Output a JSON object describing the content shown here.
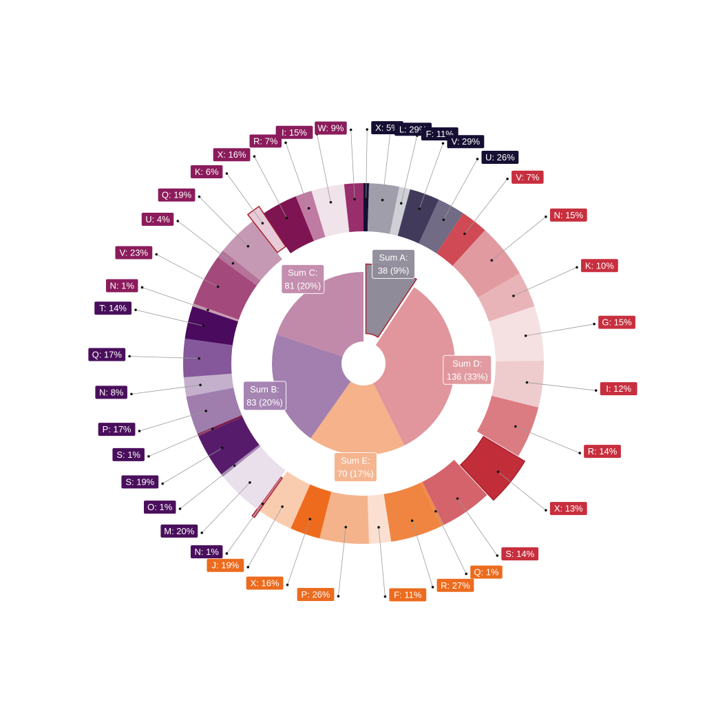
{
  "chart_data": {
    "type": "sunburst",
    "title": "",
    "groups": [
      {
        "name": "A",
        "sum_label": "Sum A:",
        "sum_value": "38 (9%)",
        "total": 38,
        "inner_color": "#8f8b99",
        "label_color": "#160f33",
        "children": [
          {
            "label": "X: 5%",
            "value": 2,
            "color": "#160f33",
            "exploded": false
          },
          {
            "label": "L: 29%",
            "value": 11,
            "color": "#a19eab",
            "exploded": false
          },
          {
            "label": "F: 11%",
            "value": 4,
            "color": "#cfcfd6",
            "exploded": false
          },
          {
            "label": "V: 29%",
            "value": 11,
            "color": "#413a5a",
            "exploded": false
          },
          {
            "label": "U: 26%",
            "value": 10,
            "color": "#716b85",
            "exploded": false
          }
        ]
      },
      {
        "name": "D",
        "sum_label": "Sum D:",
        "sum_value": "136 (33%)",
        "total": 136,
        "inner_color": "#e0969c",
        "label_color": "#c72f3e",
        "children": [
          {
            "label": "V: 7%",
            "value": 10,
            "color": "#cf4a55",
            "exploded": false
          },
          {
            "label": "N: 15%",
            "value": 20,
            "color": "#e09aa0",
            "exploded": false
          },
          {
            "label": "K: 10%",
            "value": 13,
            "color": "#e8b4b8",
            "exploded": false
          },
          {
            "label": "G: 15%",
            "value": 20,
            "color": "#f6e1e2",
            "exploded": false
          },
          {
            "label": "I: 12%",
            "value": 17,
            "color": "#eeccce",
            "exploded": false
          },
          {
            "label": "R: 14%",
            "value": 19,
            "color": "#db7b82",
            "exploded": false
          },
          {
            "label": "X: 13%",
            "value": 18,
            "color": "#c22d3a",
            "exploded": true
          },
          {
            "label": "S: 14%",
            "value": 19,
            "color": "#d4636b",
            "exploded": false
          }
        ]
      },
      {
        "name": "E",
        "sum_label": "Sum E:",
        "sum_value": "70 (17%)",
        "total": 70,
        "inner_color": "#f5b28b",
        "label_color": "#ec6b1e",
        "children": [
          {
            "label": "Q: 1%",
            "value": 1,
            "color": "#f08a4a",
            "exploded": false
          },
          {
            "label": "R: 27%",
            "value": 19,
            "color": "#f08542",
            "exploded": false
          },
          {
            "label": "F: 11%",
            "value": 8,
            "color": "#fbe0d2",
            "exploded": false
          },
          {
            "label": "P: 26%",
            "value": 18,
            "color": "#f5b38b",
            "exploded": false
          },
          {
            "label": "X: 16%",
            "value": 11,
            "color": "#ee6b1d",
            "exploded": false
          },
          {
            "label": "J: 19%",
            "value": 13,
            "color": "#f9ccaf",
            "exploded": false
          }
        ]
      },
      {
        "name": "B",
        "sum_label": "Sum B:",
        "sum_value": "83 (20%)",
        "total": 83,
        "inner_color": "#a27faf",
        "label_color": "#4a0f5c",
        "children": [
          {
            "label": "N: 1%",
            "value": 1,
            "color": "#d6889e",
            "exploded": true
          },
          {
            "label": "M: 20%",
            "value": 17,
            "color": "#e9e0ec",
            "exploded": false
          },
          {
            "label": "O: 1%",
            "value": 1,
            "color": "#a989b6",
            "exploded": false
          },
          {
            "label": "S: 19%",
            "value": 16,
            "color": "#571b6c",
            "exploded": false
          },
          {
            "label": "S: 1%",
            "value": 1,
            "color": "#7d1e4e",
            "exploded": false
          },
          {
            "label": "P: 17%",
            "value": 14,
            "color": "#9f7dad",
            "exploded": false
          },
          {
            "label": "N: 8%",
            "value": 7,
            "color": "#c4b0cc",
            "exploded": false
          },
          {
            "label": "Q: 17%",
            "value": 14,
            "color": "#84589a",
            "exploded": false
          },
          {
            "label": "T: 14%",
            "value": 12,
            "color": "#4a0a5e",
            "exploded": false
          }
        ]
      },
      {
        "name": "C",
        "sum_label": "Sum C:",
        "sum_value": "81 (20%)",
        "total": 81,
        "inner_color": "#c189aa",
        "label_color": "#8b1c5c",
        "children": [
          {
            "label": "N: 1%",
            "value": 1,
            "color": "#c99cb4",
            "exploded": false
          },
          {
            "label": "V: 23%",
            "value": 19,
            "color": "#a4497b",
            "exploded": false
          },
          {
            "label": "U: 4%",
            "value": 3,
            "color": "#b5739a",
            "exploded": false
          },
          {
            "label": "Q: 19%",
            "value": 15,
            "color": "#c599b3",
            "exploded": false
          },
          {
            "label": "K: 6%",
            "value": 5,
            "color": "#e8cbd8",
            "exploded": true
          },
          {
            "label": "X: 16%",
            "value": 13,
            "color": "#7f1452",
            "exploded": false
          },
          {
            "label": "R: 7%",
            "value": 6,
            "color": "#c07ba3",
            "exploded": false
          },
          {
            "label": "I: 15%",
            "value": 12,
            "color": "#f0e3ea",
            "exploded": false
          },
          {
            "label": "W: 9%",
            "value": 7,
            "color": "#982e6c",
            "exploded": false
          }
        ]
      }
    ],
    "exploded_group": "A",
    "grid": false,
    "legend": "none"
  }
}
